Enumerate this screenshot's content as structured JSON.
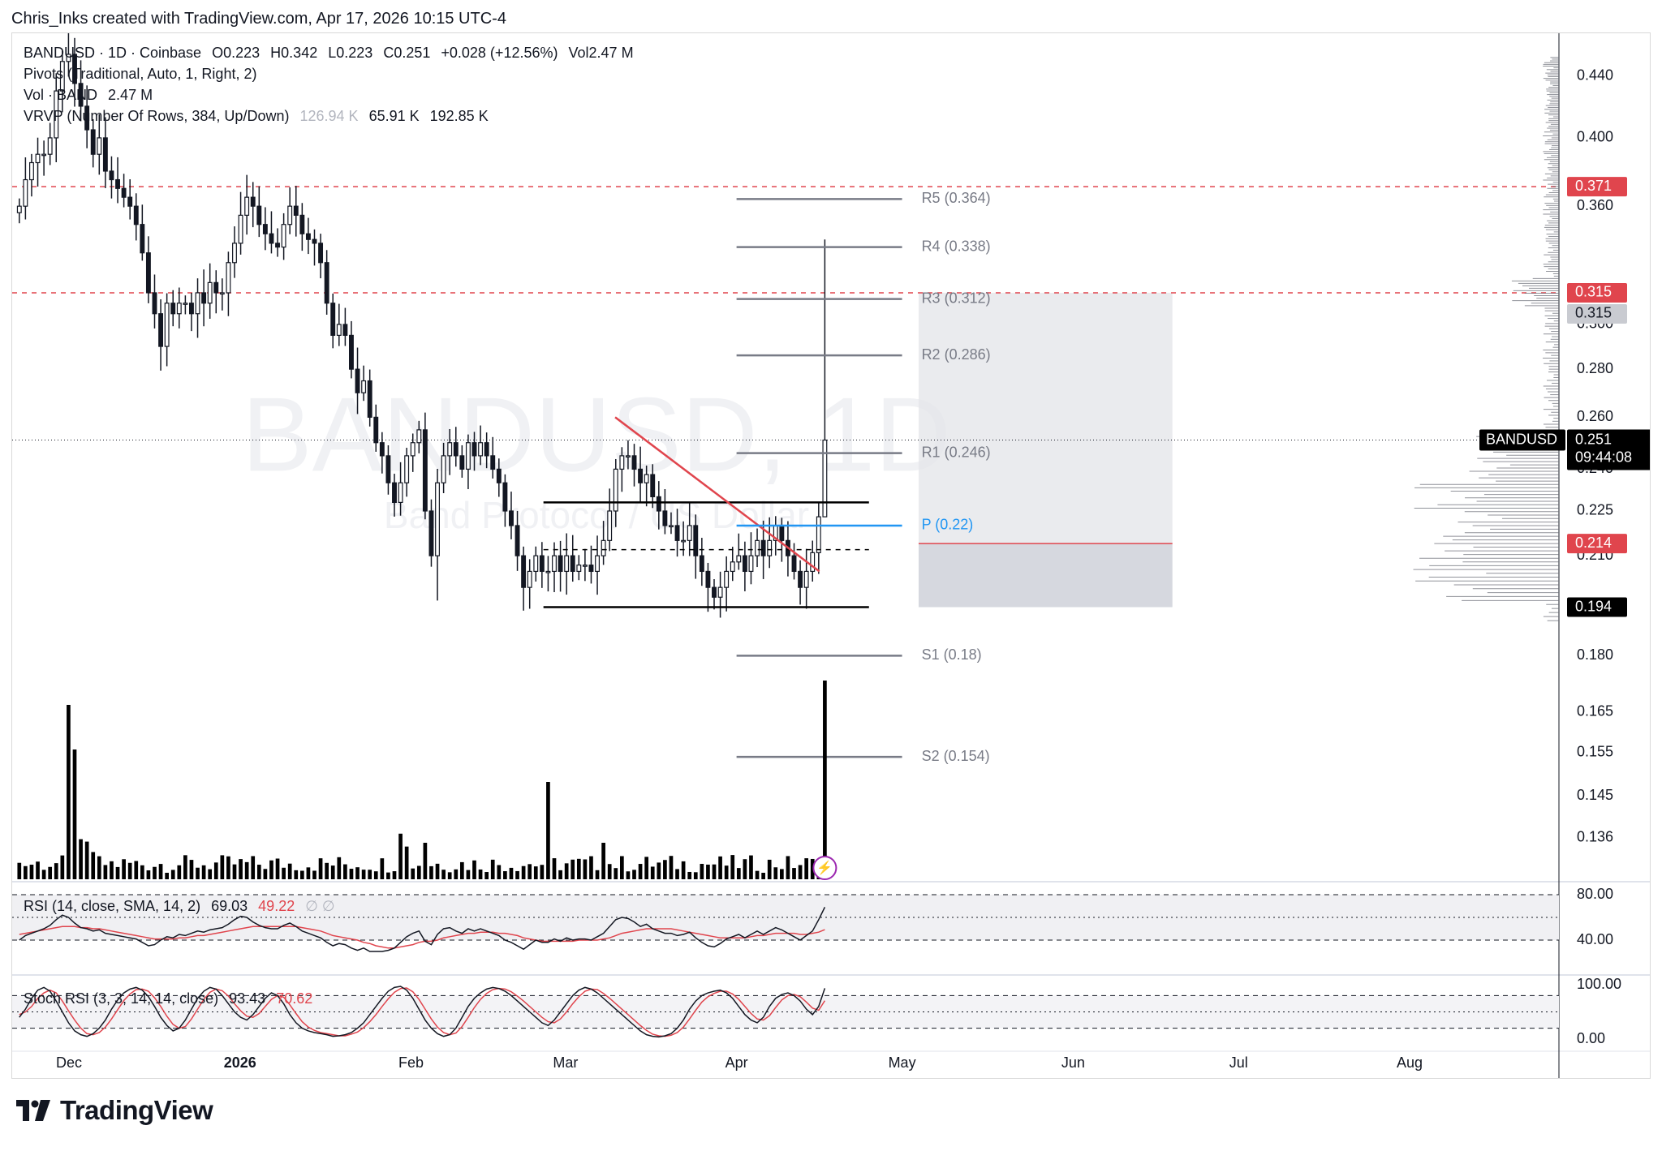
{
  "attribution": "Chris_Inks created with TradingView.com, Apr 17, 2026 10:15 UTC-4",
  "legend": {
    "symbol_line": {
      "symbol": "BANDUSD · 1D · Coinbase",
      "o_label": "O",
      "o": "0.223",
      "h_label": "H",
      "h": "0.342",
      "l_label": "L",
      "l": "0.223",
      "c_label": "C",
      "c": "0.251",
      "change": "+0.028 (+12.56%)",
      "vol_label": "Vol",
      "vol": "2.47 M"
    },
    "pivots": "Pivots (Traditional, Auto, 1, Right, 2)",
    "volume": {
      "label": "Vol · BAND",
      "value": "2.47 M"
    },
    "vrvp": {
      "label": "VRVP (Number Of Rows, 384, Up/Down)",
      "up": "126.94 K",
      "down": "65.91 K",
      "total": "192.85 K"
    },
    "rsi": {
      "label": "RSI (14, close, SMA, 14, 2)",
      "value": "69.03",
      "ma": "49.22",
      "extra": "∅ ∅"
    },
    "stoch": {
      "label": "Stoch RSI (3, 3, 14, 14, close)",
      "k": "93.43",
      "d": "70.62"
    }
  },
  "watermark": {
    "ticker": "BANDUSD, 1D",
    "name": "Band Protocol / US Dollar"
  },
  "colors": {
    "up": "#131722",
    "down": "#131722",
    "pivot": "#787b86",
    "pivot_p": "#2962ff",
    "trendline": "#e0454d",
    "resistance": "#e0454d",
    "rsi_line": "#131722",
    "rsi_ma": "#e0454d",
    "zone_upper": "#e5e6ea",
    "zone_lower": "#d1d4dc"
  },
  "chart_data": {
    "type": "candlestick",
    "symbol": "BANDUSD",
    "timeframe": "1D",
    "exchange": "Coinbase",
    "y_axis": {
      "scale": "log",
      "range": [
        0.128,
        0.47
      ],
      "ticks": [
        "0.440",
        "0.400",
        "0.360",
        "0.300",
        "0.280",
        "0.260",
        "0.240",
        "0.225",
        "0.210",
        "0.180",
        "0.165",
        "0.155",
        "0.145",
        "0.136"
      ]
    },
    "x_axis": {
      "ticks": [
        "Dec",
        "2026",
        "Feb",
        "Mar",
        "Apr",
        "May",
        "Jun",
        "Jul",
        "Aug"
      ],
      "range": [
        "2025-11-21",
        "2026-08-31"
      ]
    },
    "closes": [
      0.36,
      0.375,
      0.385,
      0.39,
      0.39,
      0.4,
      0.43,
      0.45,
      0.455,
      0.435,
      0.42,
      0.405,
      0.39,
      0.4,
      0.38,
      0.375,
      0.37,
      0.365,
      0.36,
      0.35,
      0.335,
      0.315,
      0.305,
      0.29,
      0.31,
      0.305,
      0.31,
      0.31,
      0.305,
      0.315,
      0.31,
      0.32,
      0.315,
      0.315,
      0.33,
      0.34,
      0.355,
      0.365,
      0.36,
      0.35,
      0.345,
      0.34,
      0.338,
      0.35,
      0.36,
      0.355,
      0.345,
      0.342,
      0.34,
      0.33,
      0.31,
      0.295,
      0.3,
      0.295,
      0.28,
      0.27,
      0.275,
      0.26,
      0.25,
      0.245,
      0.235,
      0.228,
      0.235,
      0.245,
      0.25,
      0.255,
      0.225,
      0.21,
      0.235,
      0.245,
      0.25,
      0.245,
      0.24,
      0.25,
      0.245,
      0.25,
      0.245,
      0.24,
      0.235,
      0.225,
      0.22,
      0.21,
      0.2,
      0.205,
      0.21,
      0.205,
      0.205,
      0.21,
      0.205,
      0.21,
      0.205,
      0.207,
      0.207,
      0.205,
      0.21,
      0.215,
      0.225,
      0.24,
      0.245,
      0.245,
      0.24,
      0.235,
      0.238,
      0.23,
      0.225,
      0.22,
      0.22,
      0.215,
      0.215,
      0.22,
      0.21,
      0.205,
      0.2,
      0.197,
      0.2,
      0.205,
      0.208,
      0.21,
      0.205,
      0.21,
      0.215,
      0.21,
      0.215,
      0.22,
      0.215,
      0.21,
      0.205,
      0.2,
      0.205,
      0.211,
      0.223,
      0.251
    ],
    "last_candle": {
      "open": 0.223,
      "high": 0.342,
      "low": 0.223,
      "close": 0.251
    },
    "volume_last": "2.47 M",
    "pivot_levels": [
      {
        "name": "R5",
        "value": 0.364,
        "label": "R5 (0.364)"
      },
      {
        "name": "R4",
        "value": 0.338,
        "label": "R4 (0.338)"
      },
      {
        "name": "R3",
        "value": 0.312,
        "label": "R3 (0.312)"
      },
      {
        "name": "R2",
        "value": 0.286,
        "label": "R2 (0.286)"
      },
      {
        "name": "R1",
        "value": 0.246,
        "label": "R1 (0.246)"
      },
      {
        "name": "P",
        "value": 0.22,
        "label": "P (0.22)"
      },
      {
        "name": "S1",
        "value": 0.18,
        "label": "S1 (0.18)"
      },
      {
        "name": "S2",
        "value": 0.154,
        "label": "S2 (0.154)"
      }
    ],
    "horizontal_lines": [
      {
        "value": 0.371,
        "style": "dashed",
        "color": "#e0454d"
      },
      {
        "value": 0.315,
        "style": "dashed",
        "color": "#e0454d"
      }
    ],
    "box_levels": {
      "top": 0.228,
      "mid": 0.212,
      "bottom": 0.194
    },
    "trendline": {
      "from": {
        "date": "2026-03-10",
        "value": 0.26
      },
      "to": {
        "date": "2026-04-16",
        "value": 0.205
      }
    },
    "position_zone": {
      "target": 0.315,
      "entry": 0.214,
      "stop": 0.194
    },
    "price_tags": [
      {
        "value": "0.371",
        "bg": "#e0454d",
        "fg": "#ffffff"
      },
      {
        "value": "0.315",
        "bg": "#e0454d",
        "fg": "#ffffff"
      },
      {
        "value": "0.315",
        "bg": "#c9cbd1",
        "fg": "#131722"
      },
      {
        "value": "0.214",
        "bg": "#e0454d",
        "fg": "#ffffff"
      },
      {
        "value": "0.194",
        "bg": "#000000",
        "fg": "#ffffff"
      }
    ],
    "current": {
      "symbol": "BANDUSD",
      "price": "0.251",
      "countdown": "09:44:08"
    },
    "rsi": {
      "value": 69.03,
      "ma": 49.22,
      "ticks": [
        "80.00",
        "40.00"
      ],
      "series": [
        40,
        44,
        46,
        48,
        50,
        53,
        58,
        62,
        60,
        55,
        51,
        50,
        48,
        49,
        46,
        45,
        44,
        43,
        42,
        41,
        38,
        35,
        36,
        40,
        43,
        42,
        45,
        44,
        46,
        48,
        47,
        49,
        50,
        51,
        54,
        58,
        61,
        60,
        56,
        53,
        51,
        50,
        50,
        53,
        55,
        52,
        48,
        46,
        44,
        42,
        38,
        35,
        37,
        36,
        33,
        31,
        33,
        30,
        29,
        30,
        31,
        33,
        38,
        43,
        46,
        48,
        39,
        36,
        45,
        50,
        51,
        48,
        46,
        50,
        48,
        50,
        48,
        46,
        44,
        40,
        38,
        35,
        32,
        36,
        40,
        38,
        38,
        41,
        39,
        42,
        40,
        41,
        41,
        40,
        43,
        46,
        52,
        58,
        60,
        59,
        56,
        52,
        54,
        50,
        48,
        46,
        46,
        44,
        45,
        47,
        42,
        38,
        35,
        34,
        37,
        41,
        43,
        45,
        42,
        45,
        48,
        45,
        48,
        51,
        49,
        46,
        43,
        40,
        44,
        48,
        58,
        69.03
      ],
      "ma_series": [
        45,
        46,
        47,
        48,
        49,
        50,
        51,
        52,
        52,
        52,
        51,
        51,
        50,
        50,
        49,
        48,
        47,
        46,
        45,
        44,
        43,
        42,
        41,
        41,
        41,
        41,
        42,
        42,
        43,
        44,
        44,
        45,
        46,
        47,
        48,
        49,
        50,
        51,
        52,
        52,
        52,
        52,
        52,
        52,
        52,
        52,
        51,
        50,
        49,
        48,
        46,
        44,
        43,
        42,
        41,
        40,
        38,
        37,
        35,
        34,
        33,
        33,
        34,
        35,
        36,
        38,
        39,
        39,
        40,
        42,
        43,
        44,
        45,
        46,
        46,
        47,
        47,
        47,
        46,
        46,
        45,
        44,
        42,
        41,
        40,
        39,
        39,
        39,
        39,
        39,
        39,
        40,
        40,
        40,
        40,
        41,
        42,
        44,
        46,
        47,
        48,
        49,
        50,
        50,
        50,
        50,
        50,
        49,
        48,
        47,
        46,
        45,
        44,
        43,
        42,
        42,
        42,
        42,
        42,
        43,
        44,
        44,
        45,
        46,
        46,
        46,
        46,
        45,
        45,
        46,
        47,
        49.22
      ]
    },
    "stoch_rsi": {
      "k": 93.43,
      "d": 70.62,
      "ticks": [
        "100.00",
        "0.00"
      ],
      "k_series": [
        40,
        55,
        75,
        90,
        95,
        88,
        70,
        50,
        30,
        15,
        8,
        5,
        10,
        20,
        35,
        55,
        72,
        85,
        92,
        95,
        90,
        78,
        60,
        40,
        25,
        15,
        20,
        35,
        55,
        75,
        88,
        95,
        92,
        80,
        65,
        50,
        40,
        35,
        45,
        60,
        75,
        85,
        80,
        65,
        45,
        30,
        20,
        15,
        12,
        10,
        8,
        5,
        6,
        8,
        12,
        20,
        30,
        45,
        60,
        75,
        88,
        95,
        97,
        90,
        75,
        55,
        35,
        20,
        10,
        5,
        8,
        20,
        40,
        60,
        75,
        85,
        92,
        95,
        93,
        88,
        80,
        70,
        60,
        50,
        40,
        30,
        25,
        35,
        50,
        65,
        80,
        90,
        95,
        92,
        85,
        75,
        65,
        55,
        45,
        35,
        25,
        15,
        8,
        5,
        4,
        6,
        10,
        20,
        35,
        55,
        70,
        80,
        85,
        88,
        90,
        85,
        75,
        60,
        45,
        35,
        30,
        40,
        60,
        75,
        82,
        85,
        80,
        70,
        55,
        45,
        60,
        93.43
      ],
      "d_series": [
        45,
        50,
        60,
        75,
        85,
        90,
        85,
        70,
        52,
        35,
        20,
        10,
        8,
        12,
        22,
        37,
        54,
        71,
        83,
        91,
        92,
        88,
        76,
        60,
        42,
        27,
        20,
        23,
        37,
        55,
        73,
        86,
        92,
        89,
        79,
        65,
        52,
        42,
        40,
        47,
        60,
        73,
        80,
        77,
        63,
        47,
        32,
        22,
        16,
        12,
        10,
        8,
        6,
        6,
        9,
        13,
        21,
        32,
        45,
        60,
        74,
        86,
        93,
        94,
        87,
        73,
        55,
        37,
        22,
        12,
        8,
        11,
        23,
        40,
        58,
        73,
        84,
        91,
        93,
        92,
        87,
        79,
        70,
        60,
        50,
        40,
        32,
        30,
        37,
        50,
        65,
        78,
        88,
        92,
        91,
        84,
        75,
        65,
        55,
        45,
        35,
        25,
        16,
        9,
        6,
        5,
        7,
        12,
        22,
        37,
        53,
        68,
        78,
        84,
        88,
        88,
        83,
        73,
        60,
        47,
        37,
        35,
        43,
        58,
        72,
        80,
        82,
        78,
        68,
        57,
        53,
        70.62
      ]
    }
  },
  "x_labels": [
    "Dec",
    "2026",
    "Feb",
    "Mar",
    "Apr",
    "May",
    "Jun",
    "Jul",
    "Aug"
  ],
  "footer": {
    "brand": "TradingView"
  }
}
